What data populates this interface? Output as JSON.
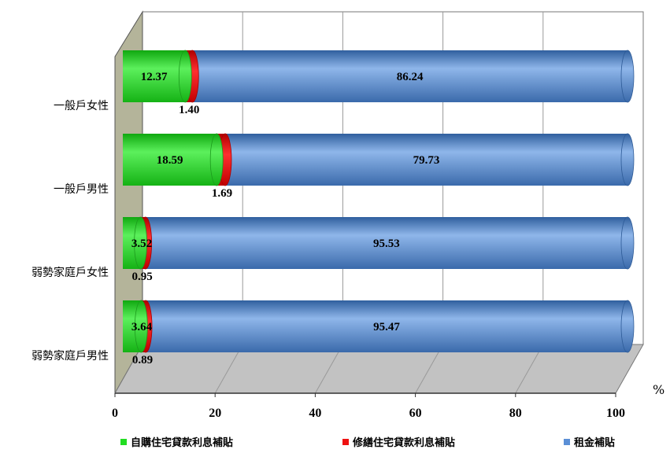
{
  "chart_data": {
    "type": "bar",
    "orientation": "horizontal",
    "stacked": true,
    "style": "3d-cylinder",
    "categories": [
      "一般戶女性",
      "一般戶男性",
      "弱勢家庭戶女性",
      "弱勢家庭戶男性"
    ],
    "series": [
      {
        "name": "自購住宅貸款利息補貼",
        "color": "#22dd22",
        "values": [
          12.37,
          18.59,
          3.52,
          3.64
        ]
      },
      {
        "name": "修繕住宅貸款利息補貼",
        "color": "#ee1111",
        "values": [
          1.4,
          1.69,
          0.95,
          0.89
        ]
      },
      {
        "name": "租金補貼",
        "color": "#5b8fd6",
        "values": [
          86.24,
          79.73,
          95.53,
          95.47
        ]
      }
    ],
    "value_labels": [
      [
        "12.37",
        "1.40",
        "86.24"
      ],
      [
        "18.59",
        "1.69",
        "79.73"
      ],
      [
        "3.52",
        "0.95",
        "95.53"
      ],
      [
        "3.64",
        "0.89",
        "95.47"
      ]
    ],
    "xticks": [
      "0",
      "20",
      "40",
      "60",
      "80",
      "100"
    ],
    "xlim": [
      0,
      100
    ],
    "unit": "%",
    "legend_position": "bottom",
    "grid": true
  }
}
